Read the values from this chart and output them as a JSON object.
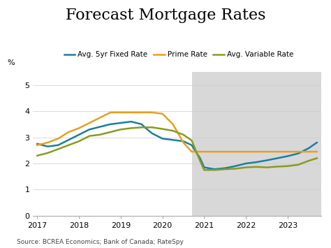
{
  "title": "Forecast Mortgage Rates",
  "ylabel": "%",
  "source": "Source: BCREA Economics; Bank of Canada; RateSpy",
  "xlim": [
    2016.9,
    2023.8
  ],
  "ylim": [
    0,
    5.5
  ],
  "yticks": [
    0,
    1,
    2,
    3,
    4,
    5
  ],
  "xticks": [
    2017,
    2018,
    2019,
    2020,
    2021,
    2022,
    2023
  ],
  "forecast_start": 2020.7,
  "forecast_end": 2023.8,
  "background_color": "#ffffff",
  "forecast_bg_color": "#d8d8d8",
  "series": {
    "avg_5yr_fixed": {
      "label": "Avg. 5yr Fixed Rate",
      "color": "#1a7fa0",
      "x": [
        2017.0,
        2017.25,
        2017.5,
        2017.75,
        2018.0,
        2018.25,
        2018.5,
        2018.75,
        2019.0,
        2019.25,
        2019.5,
        2019.6,
        2019.75,
        2020.0,
        2020.25,
        2020.5,
        2020.7,
        2020.9,
        2021.0,
        2021.25,
        2021.5,
        2021.75,
        2022.0,
        2022.25,
        2022.5,
        2022.75,
        2023.0,
        2023.25,
        2023.5,
        2023.7
      ],
      "y": [
        2.75,
        2.65,
        2.7,
        2.9,
        3.1,
        3.3,
        3.4,
        3.5,
        3.55,
        3.6,
        3.5,
        3.35,
        3.15,
        2.95,
        2.9,
        2.85,
        2.7,
        2.2,
        1.85,
        1.78,
        1.82,
        1.9,
        2.0,
        2.05,
        2.12,
        2.2,
        2.28,
        2.38,
        2.58,
        2.8
      ]
    },
    "prime_rate": {
      "label": "Prime Rate",
      "color": "#e8a020",
      "x": [
        2017.0,
        2017.25,
        2017.5,
        2017.75,
        2018.0,
        2018.25,
        2018.5,
        2018.75,
        2019.0,
        2019.25,
        2019.5,
        2019.75,
        2020.0,
        2020.25,
        2020.5,
        2020.7,
        2020.9,
        2021.0,
        2021.5,
        2022.0,
        2022.5,
        2023.0,
        2023.5,
        2023.7
      ],
      "y": [
        2.7,
        2.8,
        2.95,
        3.2,
        3.35,
        3.55,
        3.75,
        3.95,
        3.95,
        3.95,
        3.95,
        3.95,
        3.9,
        3.5,
        2.8,
        2.45,
        2.45,
        2.45,
        2.45,
        2.45,
        2.45,
        2.45,
        2.45,
        2.45
      ]
    },
    "avg_variable": {
      "label": "Avg. Variable Rate",
      "color": "#8a9a20",
      "x": [
        2017.0,
        2017.25,
        2017.5,
        2017.75,
        2018.0,
        2018.25,
        2018.5,
        2018.75,
        2019.0,
        2019.25,
        2019.5,
        2019.75,
        2020.0,
        2020.25,
        2020.5,
        2020.7,
        2020.9,
        2021.0,
        2021.25,
        2021.5,
        2021.75,
        2022.0,
        2022.25,
        2022.5,
        2022.75,
        2023.0,
        2023.25,
        2023.5,
        2023.7
      ],
      "y": [
        2.3,
        2.4,
        2.55,
        2.7,
        2.85,
        3.05,
        3.1,
        3.2,
        3.3,
        3.35,
        3.38,
        3.38,
        3.32,
        3.25,
        3.1,
        2.88,
        2.1,
        1.75,
        1.75,
        1.78,
        1.8,
        1.85,
        1.87,
        1.85,
        1.88,
        1.9,
        1.95,
        2.1,
        2.2
      ]
    }
  },
  "title_fontsize": 16,
  "legend_fontsize": 7.5,
  "tick_fontsize": 8,
  "source_fontsize": 6.5
}
